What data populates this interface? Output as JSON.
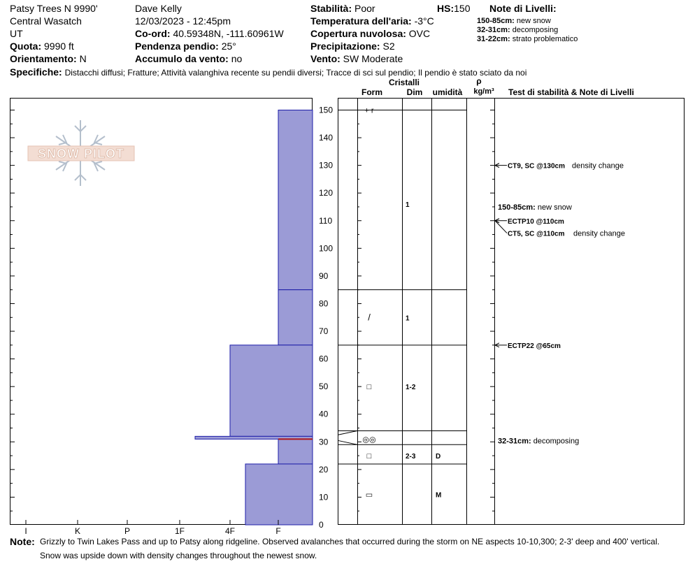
{
  "header": {
    "location": "Patsy Trees N 9990'",
    "region": "Central Wasatch",
    "state": "UT",
    "elevation_label": "Quota:",
    "elevation_value": "9990 ft",
    "aspect_label": "Orientamento:",
    "aspect_value": "N",
    "observer": "Dave Kelly",
    "datetime": "12/03/2023 - 12:45pm",
    "coord_label": "Co-ord:",
    "coord_value": "40.59348N, -111.60961W",
    "slope_label": "Pendenza pendio:",
    "slope_value": "25°",
    "wind_loading_label": "Accumulo da vento:",
    "wind_loading_value": "no",
    "stability_label": "Stabilità:",
    "stability_value": "Poor",
    "hs_label": "HS:",
    "hs_value": "150",
    "air_temp_label": "Temperatura dell'aria:",
    "air_temp_value": "-3°C",
    "sky_label": "Copertura nuvolosa:",
    "sky_value": "OVC",
    "precip_label": "Precipitazione:",
    "precip_value": "S2",
    "wind_label": "Vento:",
    "wind_value": "SW Moderate",
    "layer_notes_title": "Note di Livelli:",
    "layer_notes": [
      {
        "range": "150-85cm:",
        "text": "new snow"
      },
      {
        "range": "32-31cm:",
        "text": "decomposing"
      },
      {
        "range": "31-22cm:",
        "text": "strato problematico"
      }
    ],
    "specifics_label": "Specifiche:",
    "specifics_text": "Distacchi diffusi;  Fratture;  Attività valanghiva recente su pendii diversi;  Tracce di sci sul pendio;  Il pendio è stato sciato da noi"
  },
  "logo_text": "SNOW PILOT",
  "table_headers": {
    "crystals": "Cristalli",
    "form": "Form",
    "size": "Dim",
    "moisture": "umidità",
    "rho": "ρ",
    "density_unit": "kg/m³",
    "tests": "Test di stabilità & Note di Livelli"
  },
  "colors": {
    "hardness_fill": "#9b9bd6",
    "hardness_edge": "#1d1da8",
    "problem_line": "#b01818"
  },
  "chart_data": {
    "type": "bar",
    "title": "",
    "xlabel": "",
    "ylabel": "",
    "hardness_categories": [
      "I",
      "K",
      "P",
      "1F",
      "4F",
      "F"
    ],
    "height_ticks": [
      0,
      10,
      20,
      30,
      40,
      50,
      60,
      70,
      80,
      90,
      100,
      110,
      120,
      130,
      140,
      150
    ],
    "ylim": [
      0,
      150
    ],
    "layers": [
      {
        "top": 150,
        "bottom": 85,
        "hardness": "F"
      },
      {
        "top": 85,
        "bottom": 65,
        "hardness": "F"
      },
      {
        "top": 65,
        "bottom": 32,
        "hardness": "4F"
      },
      {
        "top": 32,
        "bottom": 31,
        "hardness": "1F+"
      },
      {
        "top": 31,
        "bottom": 22,
        "hardness": "F"
      },
      {
        "top": 22,
        "bottom": 0,
        "hardness": "4F-"
      }
    ],
    "problem_layer_cm": 31,
    "crystal_rows": [
      {
        "top": 150,
        "bottom": 85,
        "form_glyph": "+ r",
        "form_at": 150,
        "size": "",
        "moisture": ""
      },
      {
        "top": 150,
        "bottom": 85,
        "form_glyph": "",
        "form_at": 116,
        "size": "1",
        "moisture": ""
      },
      {
        "top": 85,
        "bottom": 65,
        "form_glyph": "/",
        "form_at": 75,
        "size": "1",
        "moisture": ""
      },
      {
        "top": 65,
        "bottom": 34,
        "form_glyph": "□",
        "form_at": 50,
        "size": "1-2",
        "moisture": ""
      },
      {
        "top": 34,
        "bottom": 29,
        "form_glyph": "◎◎",
        "form_at": 31,
        "size": "",
        "moisture": ""
      },
      {
        "top": 29,
        "bottom": 22,
        "form_glyph": "□",
        "form_at": 25,
        "size": "2-3",
        "moisture": "D"
      },
      {
        "top": 22,
        "bottom": 0,
        "form_glyph": "▭",
        "form_at": 11,
        "size": "",
        "moisture": "M"
      }
    ],
    "tests": [
      {
        "depth": 130,
        "text": "CT9, SC @130cm",
        "note": "density change"
      },
      {
        "depth": 110,
        "text": "ECTP10 @110cm",
        "note": ""
      },
      {
        "depth": 110,
        "text": "CT5, SC @110cm",
        "note": "density change"
      },
      {
        "depth": 65,
        "text": "ECTP22 @65cm",
        "note": ""
      }
    ],
    "side_notes": [
      {
        "at": 116,
        "label": "150-85cm:",
        "text": "new snow"
      },
      {
        "at": 30,
        "label": "32-31cm:",
        "text": "decomposing"
      }
    ]
  },
  "note": {
    "label": "Note:",
    "line1": "Grizzly to Twin Lakes Pass and up to Patsy along ridgeline. Observed avalanches that occurred during the storm on NE aspects 10-10,300; 2-3' deep and 400' vertical.",
    "line2": "Snow was upside down with density changes throughout the newest snow."
  }
}
